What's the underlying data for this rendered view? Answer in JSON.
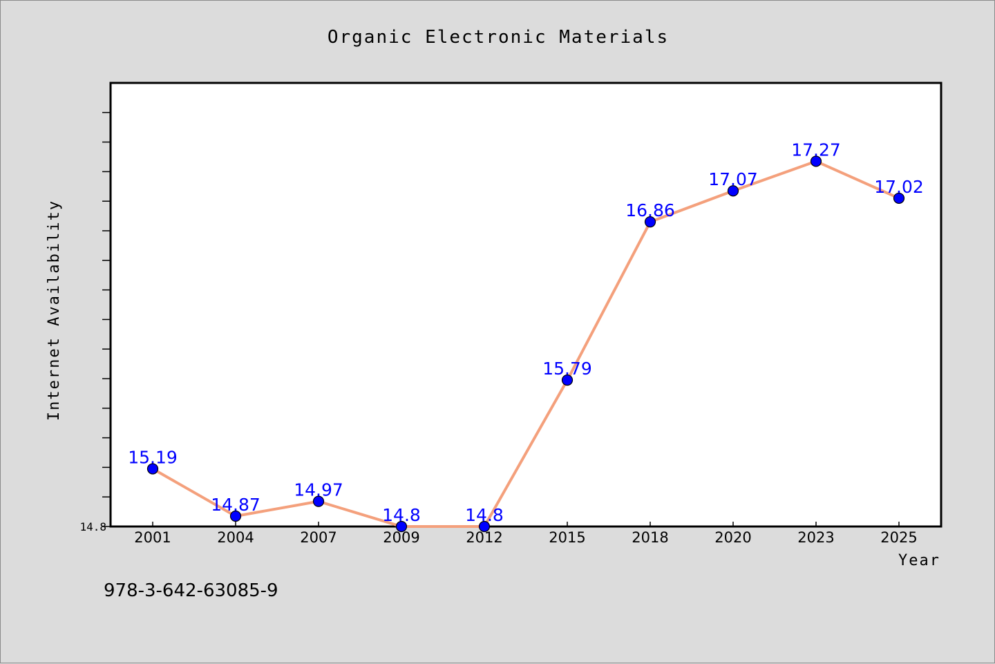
{
  "chart_data": {
    "type": "line",
    "title": "Organic Electronic Materials",
    "xlabel": "Year",
    "ylabel": "Internet Availability",
    "categories": [
      "2001",
      "2004",
      "2007",
      "2009",
      "2012",
      "2015",
      "2018",
      "2020",
      "2023",
      "2025"
    ],
    "series": [
      {
        "values": [
          15.19,
          14.87,
          14.97,
          14.8,
          14.8,
          15.79,
          16.86,
          17.07,
          17.27,
          17.02
        ],
        "labels": [
          "15.19",
          "14.87",
          "14.97",
          "14.8",
          "14.8",
          "15.79",
          "16.86",
          "17.07",
          "17.27",
          "17.02"
        ]
      }
    ],
    "ylim": [
      14.8,
      17.8
    ],
    "yticks_labeled": [
      "14.8"
    ],
    "grid": false,
    "legend": "none",
    "colors": {
      "line": "#f4a07c",
      "marker": "#0000ff",
      "marker_edge": "#000000",
      "data_label": "#0000ff",
      "plot_bg": "#ffffff",
      "page_bg": "#dcdcdc"
    }
  },
  "footer": {
    "isbn": "978-3-642-63085-9"
  }
}
